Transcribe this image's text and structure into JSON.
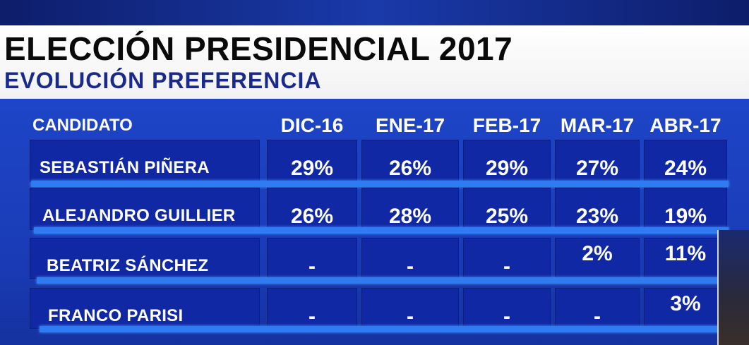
{
  "title": "ELECCIÓN PRESIDENCIAL 2017",
  "subtitle": "EVOLUCIÓN PREFERENCIA",
  "table": {
    "headers": [
      "CANDIDATO",
      "DIC-16",
      "ENE-17",
      "FEB-17",
      "MAR-17",
      "ABR-17"
    ],
    "rows": [
      {
        "name": "SEBASTIÁN PIÑERA",
        "values": [
          "29%",
          "26%",
          "29%",
          "27%",
          "24%"
        ]
      },
      {
        "name": "ALEJANDRO GUILLIER",
        "values": [
          "26%",
          "28%",
          "25%",
          "23%",
          "19%"
        ]
      },
      {
        "name": "BEATRIZ SÁNCHEZ",
        "values": [
          "-",
          "-",
          "-",
          "2%",
          "11%"
        ]
      },
      {
        "name": "FRANCO PARISI",
        "values": [
          "-",
          "-",
          "-",
          "-",
          "3%"
        ]
      }
    ]
  },
  "colors": {
    "panel": "#1a3cb8",
    "cell": "#1128a4",
    "row_line": "#2e7bf2",
    "title_band": "#ffffff",
    "title_text": "#0a0a0a",
    "subtitle_text": "#1a2a8a"
  }
}
